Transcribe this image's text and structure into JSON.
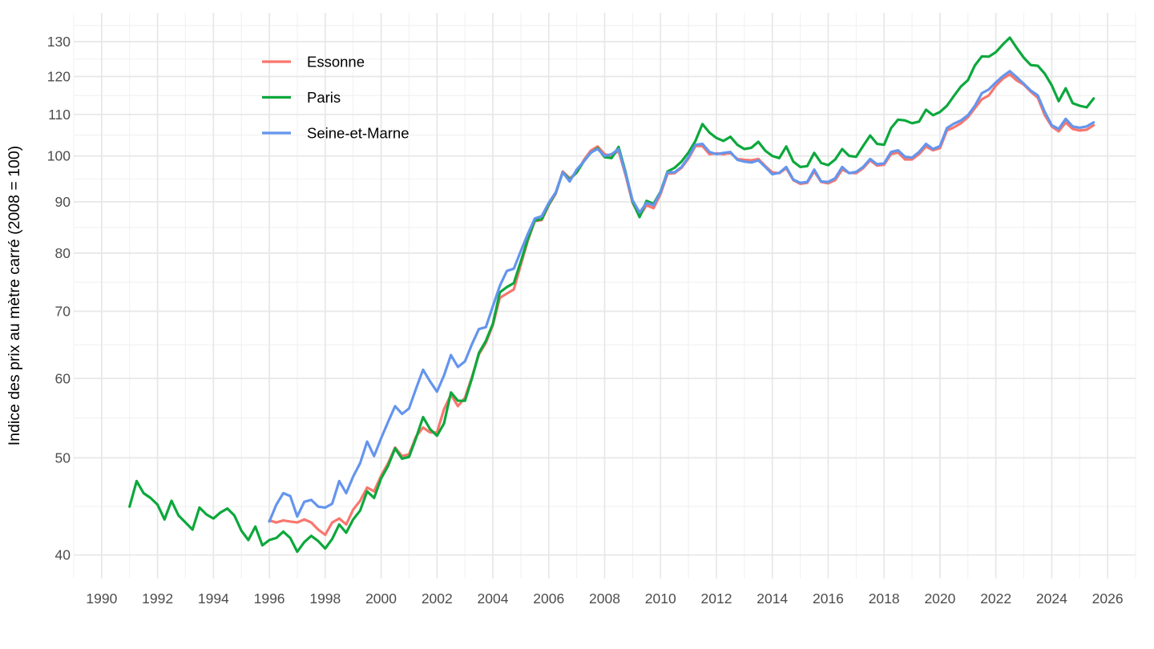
{
  "chart_data": {
    "type": "line",
    "title": "",
    "xlabel": "",
    "ylabel": "Indice des prix au mètre carré (2008 = 100)",
    "y_scale": "log10",
    "grid": {
      "major_color": "#E7E7E7",
      "minor_color": "#F1F1F1",
      "background": "#FFFFFF"
    },
    "axis_text_color": "#4D4D4D",
    "title_text_color": "#000000",
    "legend_position": "inset-top-left",
    "x_range": [
      1989.0,
      2027.0
    ],
    "y_range": [
      37.9,
      138.9
    ],
    "x_ticks_major": [
      1990,
      1992,
      1994,
      1996,
      1998,
      2000,
      2002,
      2004,
      2006,
      2008,
      2010,
      2012,
      2014,
      2016,
      2018,
      2020,
      2022,
      2024,
      2026
    ],
    "x_ticks_minor": [
      1989,
      1991,
      1993,
      1995,
      1997,
      1999,
      2001,
      2003,
      2005,
      2007,
      2009,
      2011,
      2013,
      2015,
      2017,
      2019,
      2021,
      2023,
      2025,
      2027
    ],
    "y_ticks_major": [
      40,
      50,
      60,
      70,
      80,
      90,
      100,
      110,
      120,
      130
    ],
    "x_unit": "year (quarterly points)",
    "series": [
      {
        "name": "Essonne",
        "color": "#F8766D",
        "x_start": 1996.0,
        "x_step": 0.25,
        "values": [
          43.3,
          43.1,
          43.3,
          43.2,
          43.1,
          43.4,
          43.1,
          42.4,
          41.9,
          43.1,
          43.5,
          42.9,
          44.4,
          45.3,
          46.7,
          46.3,
          48.0,
          49.4,
          51.2,
          50.2,
          50.4,
          52.5,
          53.6,
          53.0,
          53.0,
          55.9,
          57.8,
          56.3,
          57.4,
          60.2,
          63.4,
          65.1,
          67.8,
          72.2,
          72.9,
          73.6,
          77.9,
          82.3,
          86.1,
          86.3,
          89.3,
          91.7,
          96.5,
          95.0,
          96.2,
          99.0,
          101.2,
          102.2,
          100.4,
          100.0,
          101.2,
          95.6,
          89.8,
          87.1,
          89.3,
          88.7,
          91.6,
          96.0,
          96.1,
          97.3,
          99.4,
          102.3,
          102.3,
          100.4,
          100.6,
          100.4,
          100.7,
          99.3,
          99.1,
          99.0,
          99.3,
          97.7,
          96.3,
          96.1,
          97.2,
          94.6,
          93.8,
          94.0,
          96.5,
          94.2,
          93.9,
          94.6,
          96.9,
          96.2,
          96.1,
          97.2,
          99.0,
          97.8,
          98.0,
          100.4,
          100.8,
          99.2,
          99.2,
          100.4,
          102.2,
          101.3,
          101.8,
          106.0,
          106.8,
          107.8,
          109.3,
          111.6,
          113.9,
          114.9,
          117.5,
          119.4,
          120.6,
          118.9,
          117.8,
          115.9,
          114.3,
          109.8,
          107.0,
          105.8,
          108.0,
          106.4,
          106.0,
          106.2,
          107.3
        ]
      },
      {
        "name": "Paris",
        "color": "#0CA83C",
        "x_start": 1991.0,
        "x_step": 0.25,
        "values": [
          44.7,
          47.4,
          46.1,
          45.6,
          44.9,
          43.4,
          45.3,
          43.8,
          43.1,
          42.4,
          44.6,
          43.9,
          43.5,
          44.1,
          44.5,
          43.8,
          42.3,
          41.4,
          42.7,
          40.9,
          41.4,
          41.6,
          42.2,
          41.6,
          40.3,
          41.2,
          41.8,
          41.3,
          40.6,
          41.5,
          42.9,
          42.1,
          43.4,
          44.3,
          46.3,
          45.6,
          47.7,
          49.1,
          51.1,
          49.9,
          50.1,
          52.3,
          54.9,
          53.4,
          52.6,
          54.1,
          58.1,
          57.0,
          57.0,
          60.0,
          63.6,
          65.4,
          68.0,
          73.1,
          74.0,
          74.7,
          78.5,
          82.6,
          86.2,
          86.5,
          89.5,
          91.9,
          96.3,
          94.7,
          96.3,
          98.7,
          100.7,
          101.8,
          99.7,
          99.5,
          102.1,
          96.3,
          90.0,
          86.9,
          90.2,
          89.6,
          92.1,
          96.5,
          97.3,
          98.7,
          100.8,
          103.5,
          107.6,
          105.5,
          104.2,
          103.5,
          104.5,
          102.6,
          101.6,
          101.9,
          103.3,
          101.2,
          100.0,
          99.5,
          102.2,
          98.7,
          97.5,
          97.7,
          100.7,
          98.4,
          97.9,
          99.2,
          101.6,
          100.0,
          99.8,
          102.3,
          104.8,
          102.8,
          102.6,
          106.6,
          108.7,
          108.5,
          107.8,
          108.2,
          111.2,
          109.8,
          110.6,
          112.2,
          114.8,
          117.3,
          119.0,
          123.1,
          125.7,
          125.6,
          126.9,
          129.2,
          131.2,
          128.1,
          125.3,
          123.2,
          123.0,
          120.8,
          117.6,
          113.4,
          116.8,
          112.9,
          112.2,
          111.8,
          114.1
        ]
      },
      {
        "name": "Seine-et-Marne",
        "color": "#6495ED",
        "x_start": 1996.0,
        "x_step": 0.25,
        "values": [
          43.2,
          44.9,
          46.1,
          45.8,
          43.7,
          45.2,
          45.4,
          44.7,
          44.6,
          45.0,
          47.4,
          46.1,
          47.9,
          49.4,
          51.9,
          50.2,
          52.3,
          54.3,
          56.3,
          55.3,
          56.0,
          58.6,
          61.2,
          59.6,
          58.2,
          60.4,
          63.3,
          61.6,
          62.4,
          64.9,
          67.2,
          67.5,
          70.8,
          74.2,
          76.8,
          77.2,
          80.4,
          83.6,
          86.6,
          87.1,
          89.8,
          92.0,
          96.3,
          94.3,
          96.9,
          98.7,
          100.8,
          101.6,
          100.0,
          100.4,
          101.6,
          96.0,
          90.3,
          87.8,
          89.8,
          89.3,
          92.0,
          96.3,
          96.3,
          97.5,
          99.7,
          102.6,
          102.8,
          100.9,
          100.4,
          100.7,
          100.9,
          99.1,
          98.7,
          98.5,
          99.0,
          97.5,
          95.9,
          96.2,
          97.5,
          94.7,
          94.0,
          94.2,
          96.9,
          94.3,
          94.2,
          95.0,
          97.5,
          96.1,
          96.4,
          97.5,
          99.3,
          98.1,
          98.3,
          100.9,
          101.3,
          99.8,
          99.6,
          100.9,
          102.8,
          101.6,
          102.3,
          106.6,
          107.7,
          108.5,
          109.8,
          112.2,
          115.5,
          116.5,
          118.4,
          120.1,
          121.5,
          119.8,
          118.0,
          116.2,
          114.9,
          110.6,
          107.3,
          106.4,
          108.9,
          107.0,
          106.7,
          107.0,
          108.0
        ]
      }
    ],
    "legend_labels": [
      "Essonne",
      "Paris",
      "Seine-et-Marne"
    ],
    "y_tick_labels": [
      "40",
      "50",
      "60",
      "70",
      "80",
      "90",
      "100",
      "110",
      "120",
      "130"
    ],
    "x_tick_labels": [
      "1990",
      "1992",
      "1994",
      "1996",
      "1998",
      "2000",
      "2002",
      "2004",
      "2006",
      "2008",
      "2010",
      "2012",
      "2014",
      "2016",
      "2018",
      "2020",
      "2022",
      "2024",
      "2026"
    ]
  }
}
